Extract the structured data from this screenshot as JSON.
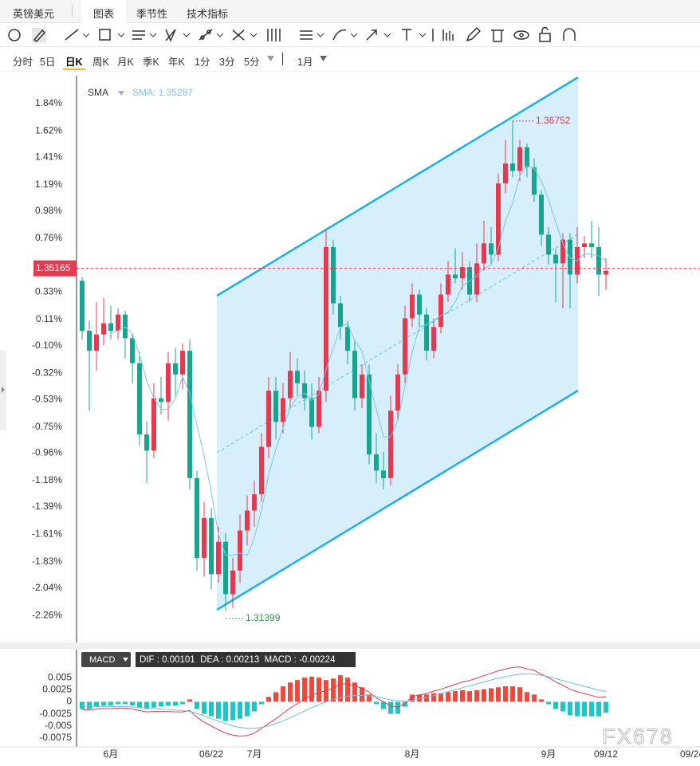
{
  "tabs": {
    "symbol": "英镑美元",
    "items": [
      "图表",
      "季节性",
      "技术指标"
    ]
  },
  "periods": [
    "分时",
    "5日",
    "日K",
    "周K",
    "月K",
    "季K",
    "年K",
    "1分",
    "3分",
    "5分",
    "1月"
  ],
  "watermark": "FX678",
  "chart_data": [
    {
      "type": "candlestick",
      "indicator": "SMA",
      "sma_label": "SMA: 1.35287",
      "up_color": "#e8384f",
      "down_color": "#16a58e",
      "sma_color": "#7cc4e8",
      "last_price_label": "1.35165",
      "last_price_pct": 0.52,
      "high_label": "1.36752",
      "low_label": "1.31399",
      "ylim": [
        -2.47,
        2.05
      ],
      "yticks": [
        {
          "value": 1.84,
          "label": "1.84%"
        },
        {
          "value": 1.62,
          "label": "1.62%"
        },
        {
          "value": 1.41,
          "label": "1.41%"
        },
        {
          "value": 1.19,
          "label": "1.19%"
        },
        {
          "value": 0.98,
          "label": "0.98%"
        },
        {
          "value": 0.76,
          "label": "0.76%"
        },
        {
          "value": 0.33,
          "label": "0.33%"
        },
        {
          "value": 0.11,
          "label": "0.11%"
        },
        {
          "value": -0.1,
          "label": "-0.10%"
        },
        {
          "value": -0.32,
          "label": "-0.32%"
        },
        {
          "value": -0.53,
          "label": "-0.53%"
        },
        {
          "value": -0.75,
          "label": "-0.75%"
        },
        {
          "value": -0.96,
          "label": "-0.96%"
        },
        {
          "value": -1.18,
          "label": "-1.18%"
        },
        {
          "value": -1.39,
          "label": "-1.39%"
        },
        {
          "value": -1.61,
          "label": "-1.61%"
        },
        {
          "value": -1.83,
          "label": "-1.83%"
        },
        {
          "value": -2.04,
          "label": "-2.04%"
        },
        {
          "value": -2.26,
          "label": "-2.26%"
        }
      ],
      "categories": [
        null,
        null,
        null,
        null,
        "6月",
        null,
        null,
        null,
        null,
        null,
        null,
        null,
        null,
        null,
        null,
        null,
        null,
        null,
        "06/22",
        null,
        null,
        null,
        null,
        null,
        "7月",
        null,
        null,
        null,
        null,
        null,
        null,
        null,
        null,
        null,
        null,
        null,
        null,
        null,
        null,
        null,
        null,
        null,
        null,
        null,
        null,
        null,
        "8月",
        null,
        null,
        null,
        null,
        null,
        null,
        null,
        null,
        null,
        null,
        null,
        null,
        null,
        null,
        null,
        null,
        null,
        null,
        "9月",
        null,
        null,
        null,
        null,
        null,
        null,
        null,
        "09/12",
        null,
        null,
        null,
        null,
        null,
        null,
        null,
        null,
        null,
        null,
        null,
        "09/24"
      ],
      "ohlc": [
        [
          0.42,
          0.45,
          -0.05,
          0.02
        ],
        [
          0.02,
          0.1,
          -0.62,
          -0.14
        ],
        [
          -0.14,
          0.25,
          -0.3,
          -0.01
        ],
        [
          -0.01,
          0.28,
          -0.1,
          0.08
        ],
        [
          0.08,
          0.22,
          -0.05,
          0.02
        ],
        [
          0.02,
          0.2,
          -0.05,
          0.15
        ],
        [
          0.15,
          0.18,
          -0.2,
          -0.04
        ],
        [
          -0.04,
          0.0,
          -0.4,
          -0.24
        ],
        [
          -0.24,
          -0.15,
          -0.9,
          -0.81
        ],
        [
          -0.81,
          -0.7,
          -1.2,
          -0.94
        ],
        [
          -0.94,
          -0.4,
          -1.0,
          -0.52
        ],
        [
          -0.52,
          -0.35,
          -0.65,
          -0.55
        ],
        [
          -0.55,
          -0.15,
          -0.7,
          -0.24
        ],
        [
          -0.24,
          -0.12,
          -0.5,
          -0.33
        ],
        [
          -0.33,
          -0.08,
          -0.45,
          -0.14
        ],
        [
          -0.14,
          -0.05,
          -1.25,
          -1.16
        ],
        [
          -1.16,
          -1.1,
          -1.9,
          -1.8
        ],
        [
          -1.8,
          -1.35,
          -1.95,
          -1.48
        ],
        [
          -1.48,
          -1.4,
          -2.05,
          -1.93
        ],
        [
          -1.93,
          -1.55,
          -2.0,
          -1.67
        ],
        [
          -1.67,
          -1.6,
          -2.22,
          -2.09
        ],
        [
          -2.09,
          -1.8,
          -2.2,
          -1.9
        ],
        [
          -1.9,
          -1.45,
          -2.0,
          -1.58
        ],
        [
          -1.58,
          -1.3,
          -1.7,
          -1.42
        ],
        [
          -1.42,
          -1.18,
          -1.55,
          -1.29
        ],
        [
          -1.29,
          -0.8,
          -1.35,
          -0.91
        ],
        [
          -0.91,
          -0.35,
          -1.0,
          -0.46
        ],
        [
          -0.46,
          -0.35,
          -0.85,
          -0.71
        ],
        [
          -0.71,
          -0.4,
          -0.8,
          -0.52
        ],
        [
          -0.52,
          -0.15,
          -0.6,
          -0.3
        ],
        [
          -0.3,
          -0.2,
          -0.5,
          -0.4
        ],
        [
          -0.4,
          -0.3,
          -0.62,
          -0.52
        ],
        [
          -0.52,
          -0.4,
          -0.85,
          -0.75
        ],
        [
          -0.75,
          -0.35,
          -0.8,
          -0.46
        ],
        [
          -0.46,
          0.84,
          -0.55,
          0.69
        ],
        [
          0.69,
          0.75,
          0.15,
          0.24
        ],
        [
          0.24,
          0.3,
          -0.05,
          0.05
        ],
        [
          0.05,
          0.1,
          -0.25,
          -0.14
        ],
        [
          -0.14,
          -0.05,
          -0.62,
          -0.52
        ],
        [
          -0.52,
          -0.25,
          -0.6,
          -0.33
        ],
        [
          -0.33,
          -0.25,
          -1.05,
          -0.97
        ],
        [
          -0.97,
          -0.8,
          -1.2,
          -1.1
        ],
        [
          -1.1,
          -0.95,
          -1.25,
          -1.16
        ],
        [
          -1.16,
          -0.5,
          -1.22,
          -0.62
        ],
        [
          -0.62,
          -0.25,
          -0.7,
          -0.33
        ],
        [
          -0.33,
          0.22,
          -0.4,
          0.12
        ],
        [
          0.12,
          0.4,
          0.05,
          0.31
        ],
        [
          0.31,
          0.35,
          0.05,
          0.15
        ],
        [
          0.15,
          0.2,
          -0.22,
          -0.14
        ],
        [
          -0.14,
          0.12,
          -0.2,
          0.05
        ],
        [
          0.05,
          0.4,
          0.0,
          0.31
        ],
        [
          0.31,
          0.58,
          0.25,
          0.47
        ],
        [
          0.47,
          0.68,
          0.4,
          0.44
        ],
        [
          0.44,
          0.65,
          0.35,
          0.53
        ],
        [
          0.53,
          0.58,
          0.25,
          0.31
        ],
        [
          0.31,
          0.72,
          0.25,
          0.56
        ],
        [
          0.56,
          0.9,
          0.5,
          0.72
        ],
        [
          0.72,
          0.85,
          0.55,
          0.63
        ],
        [
          0.63,
          1.28,
          0.58,
          1.2
        ],
        [
          1.2,
          1.55,
          1.12,
          1.36
        ],
        [
          1.36,
          1.7,
          1.25,
          1.3
        ],
        [
          1.3,
          1.55,
          1.22,
          1.49
        ],
        [
          1.49,
          1.52,
          1.25,
          1.33
        ],
        [
          1.33,
          1.4,
          1.05,
          1.11
        ],
        [
          1.11,
          1.15,
          0.7,
          0.79
        ],
        [
          0.79,
          0.85,
          0.55,
          0.63
        ],
        [
          0.63,
          0.68,
          0.25,
          0.56
        ],
        [
          0.56,
          0.8,
          0.2,
          0.75
        ],
        [
          0.75,
          0.8,
          0.2,
          0.47
        ],
        [
          0.47,
          0.85,
          0.4,
          0.69
        ],
        [
          0.69,
          0.78,
          0.6,
          0.72
        ],
        [
          0.72,
          0.9,
          0.6,
          0.69
        ],
        [
          0.69,
          0.85,
          0.3,
          0.47
        ],
        [
          0.47,
          0.6,
          0.35,
          0.5
        ]
      ],
      "sma": [
        null,
        null,
        null,
        null,
        0.0,
        0.02,
        0.05,
        0.0,
        -0.17,
        -0.38,
        -0.52,
        -0.61,
        -0.61,
        -0.52,
        -0.35,
        -0.48,
        -0.74,
        -0.98,
        -1.27,
        -1.61,
        -1.78,
        -1.78,
        -1.76,
        -1.78,
        -1.64,
        -1.42,
        -1.13,
        -0.93,
        -0.76,
        -0.6,
        -0.51,
        -0.48,
        -0.54,
        -0.49,
        -0.29,
        -0.12,
        0.05,
        0.08,
        -0.06,
        -0.14,
        -0.38,
        -0.61,
        -0.83,
        -0.83,
        -0.7,
        -0.42,
        -0.15,
        0.05,
        0.07,
        0.1,
        0.14,
        0.17,
        0.25,
        0.38,
        0.42,
        0.46,
        0.52,
        0.55,
        0.68,
        0.9,
        1.04,
        1.26,
        1.34,
        1.32,
        1.22,
        1.07,
        0.89,
        0.72,
        0.6,
        0.58,
        0.64,
        0.63,
        0.62,
        0.58
      ]
    },
    {
      "type": "macd",
      "title": "MACD",
      "readout": "DIF : 0.00101  DEA : 0.00213  MACD : -0.00224",
      "ylim": [
        -0.009,
        0.0103
      ],
      "yticks": [
        0.005,
        0.0025,
        0,
        -0.0025,
        -0.005,
        -0.0075
      ],
      "histogram": {
        "up_color": "#f0493c",
        "down_color": "#1cc6c6",
        "values": [
          -0.0015,
          -0.0015,
          -0.001,
          -0.0008,
          -0.0008,
          -0.0005,
          -0.0005,
          -0.0008,
          -0.0012,
          -0.0015,
          -0.0012,
          -0.001,
          -0.0008,
          -0.0008,
          -0.0005,
          0.0005,
          -0.0015,
          -0.0025,
          -0.003,
          -0.0035,
          -0.004,
          -0.0038,
          -0.0035,
          -0.003,
          -0.002,
          -0.0005,
          0.001,
          0.002,
          0.0032,
          0.004,
          0.0045,
          0.005,
          0.0052,
          0.005,
          0.0045,
          0.0048,
          0.0055,
          0.005,
          0.004,
          0.003,
          0.0015,
          -0.0005,
          -0.0015,
          -0.0025,
          -0.0025,
          -0.001,
          0.0015,
          0.0015,
          0.0015,
          0.0018,
          0.0018,
          0.002,
          0.0022,
          0.0024,
          0.0022,
          0.0024,
          0.0026,
          0.0028,
          0.003,
          0.0032,
          0.0032,
          0.003,
          0.002,
          0.0015,
          0.0005,
          -0.0005,
          -0.0015,
          -0.002,
          -0.0028,
          -0.003,
          -0.003,
          -0.003,
          -0.003,
          -0.00224
        ]
      },
      "lines": [
        {
          "color": "#e8384f",
          "values": [
            -0.0016,
            -0.0017,
            -0.0015,
            -0.0014,
            -0.0014,
            -0.0013,
            -0.0013,
            -0.0015,
            -0.0018,
            -0.0021,
            -0.002,
            -0.002,
            -0.002,
            -0.0021,
            -0.0021,
            -0.0018,
            -0.0032,
            -0.0042,
            -0.005,
            -0.0058,
            -0.0065,
            -0.0069,
            -0.0071,
            -0.007,
            -0.0065,
            -0.0055,
            -0.0045,
            -0.0035,
            -0.0024,
            -0.0013,
            -0.0004,
            0.0006,
            0.0014,
            0.0019,
            0.0023,
            0.0029,
            0.0037,
            0.0037,
            0.0033,
            0.0028,
            0.002,
            0.0008,
            0,
            -0.0009,
            -0.0011,
            -0.0004,
            0.0011,
            0.0014,
            0.0017,
            0.0022,
            0.0026,
            0.0031,
            0.0036,
            0.0041,
            0.0044,
            0.0049,
            0.0054,
            0.0059,
            0.0064,
            0.0068,
            0.0071,
            0.0072,
            0.0068,
            0.0065,
            0.0057,
            0.005,
            0.0041,
            0.0034,
            0.0026,
            0.0021,
            0.0017,
            0.0013,
            0.0009,
            0.00101
          ]
        },
        {
          "color": "#6cbde8",
          "values": [
            -0.0008,
            -0.0009,
            -0.001,
            -0.001,
            -0.001,
            -0.001,
            -0.001,
            -0.0011,
            -0.0012,
            -0.0013,
            -0.0014,
            -0.0015,
            -0.0016,
            -0.0017,
            -0.0018,
            -0.002,
            -0.0024,
            -0.0029,
            -0.0035,
            -0.004,
            -0.0045,
            -0.005,
            -0.0053,
            -0.0055,
            -0.0055,
            -0.0053,
            -0.005,
            -0.0045,
            -0.004,
            -0.0033,
            -0.0026,
            -0.0019,
            -0.0012,
            -0.0006,
            0,
            0.0005,
            0.0009,
            0.0012,
            0.0013,
            0.0013,
            0.0012,
            0.001,
            0.0007,
            0.0004,
            0.0002,
            0.0001,
            0.0003,
            0.0006,
            0.0009,
            0.0013,
            0.0017,
            0.0021,
            0.0025,
            0.0029,
            0.0033,
            0.0037,
            0.0041,
            0.0045,
            0.0049,
            0.0052,
            0.0055,
            0.0057,
            0.0058,
            0.0057,
            0.0055,
            0.0052,
            0.0048,
            0.0044,
            0.004,
            0.0036,
            0.0032,
            0.0028,
            0.0024,
            0.00213
          ]
        }
      ]
    }
  ]
}
